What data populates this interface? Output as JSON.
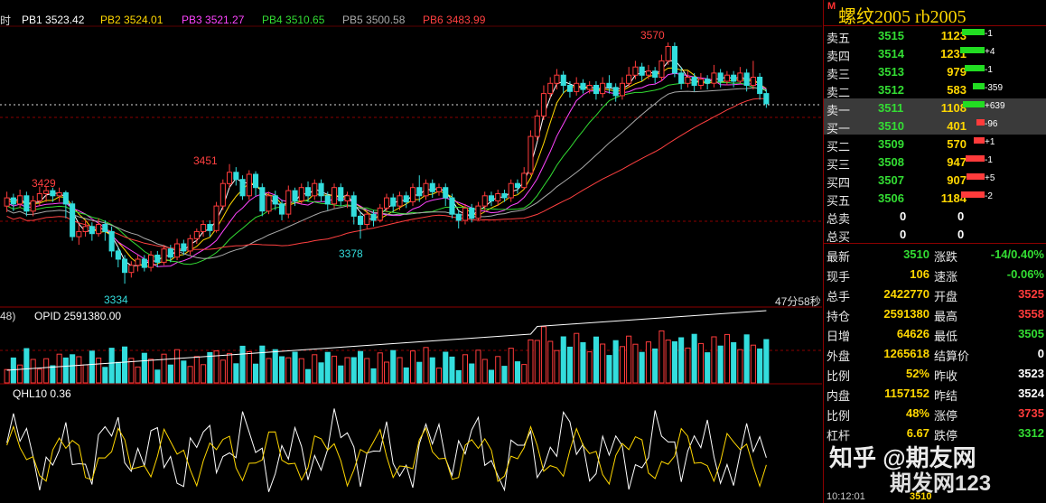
{
  "indicators": {
    "period_label": "时",
    "pb": [
      {
        "label": "PB1 3523.42",
        "color": "#ffffff"
      },
      {
        "label": "PB2 3524.01",
        "color": "#ffd700"
      },
      {
        "label": "PB3 3521.27",
        "color": "#ff44ff"
      },
      {
        "label": "PB4 3510.65",
        "color": "#33dd33"
      },
      {
        "label": "PB5 3500.58",
        "color": "#aaaaaa"
      },
      {
        "label": "PB6 3483.99",
        "color": "#ff4040"
      }
    ],
    "volume_label": "48)",
    "opid_label": "OPID 2591380.00",
    "qhl_label": "QHL10 0.36",
    "countdown": "47分58秒"
  },
  "price_annotations": {
    "high_3570": "3570",
    "high_3451": "3451",
    "high_3429": "3429",
    "low_3378": "3378",
    "low_3334": "3334"
  },
  "chart_data": {
    "type": "candlestick",
    "ylim": [
      3320,
      3585
    ],
    "current_price": 3511,
    "candles_open_close_high_low": [
      [
        3410,
        3418,
        3424,
        3404
      ],
      [
        3418,
        3412,
        3422,
        3405
      ],
      [
        3412,
        3420,
        3426,
        3408
      ],
      [
        3420,
        3405,
        3424,
        3400
      ],
      [
        3405,
        3415,
        3420,
        3400
      ],
      [
        3415,
        3422,
        3429,
        3410
      ],
      [
        3422,
        3425,
        3429,
        3414
      ],
      [
        3425,
        3420,
        3428,
        3414
      ],
      [
        3420,
        3423,
        3428,
        3414
      ],
      [
        3423,
        3412,
        3425,
        3398
      ],
      [
        3412,
        3380,
        3415,
        3376
      ],
      [
        3380,
        3385,
        3392,
        3372
      ],
      [
        3385,
        3390,
        3396,
        3380
      ],
      [
        3390,
        3383,
        3394,
        3376
      ],
      [
        3383,
        3392,
        3398,
        3380
      ],
      [
        3392,
        3385,
        3396,
        3376
      ],
      [
        3385,
        3366,
        3390,
        3360
      ],
      [
        3366,
        3358,
        3370,
        3350
      ],
      [
        3358,
        3345,
        3362,
        3334
      ],
      [
        3345,
        3352,
        3356,
        3340
      ],
      [
        3352,
        3358,
        3362,
        3346
      ],
      [
        3358,
        3350,
        3362,
        3346
      ],
      [
        3350,
        3362,
        3366,
        3346
      ],
      [
        3362,
        3355,
        3366,
        3350
      ],
      [
        3355,
        3368,
        3372,
        3352
      ],
      [
        3368,
        3360,
        3372,
        3355
      ],
      [
        3360,
        3373,
        3378,
        3357
      ],
      [
        3373,
        3366,
        3377,
        3362
      ],
      [
        3366,
        3378,
        3382,
        3362
      ],
      [
        3378,
        3385,
        3388,
        3373
      ],
      [
        3385,
        3392,
        3396,
        3380
      ],
      [
        3392,
        3386,
        3396,
        3380
      ],
      [
        3386,
        3410,
        3414,
        3384
      ],
      [
        3410,
        3432,
        3436,
        3406
      ],
      [
        3432,
        3443,
        3451,
        3428
      ],
      [
        3443,
        3436,
        3448,
        3430
      ],
      [
        3436,
        3420,
        3440,
        3416
      ],
      [
        3420,
        3441,
        3445,
        3416
      ],
      [
        3441,
        3428,
        3444,
        3420
      ],
      [
        3428,
        3405,
        3432,
        3400
      ],
      [
        3405,
        3420,
        3424,
        3402
      ],
      [
        3420,
        3412,
        3425,
        3406
      ],
      [
        3412,
        3402,
        3416,
        3396
      ],
      [
        3402,
        3425,
        3430,
        3398
      ],
      [
        3425,
        3415,
        3428,
        3410
      ],
      [
        3415,
        3428,
        3432,
        3412
      ],
      [
        3428,
        3420,
        3434,
        3414
      ],
      [
        3420,
        3432,
        3436,
        3416
      ],
      [
        3432,
        3420,
        3436,
        3414
      ],
      [
        3420,
        3412,
        3424,
        3406
      ],
      [
        3412,
        3428,
        3432,
        3408
      ],
      [
        3428,
        3415,
        3432,
        3410
      ],
      [
        3415,
        3420,
        3424,
        3408
      ],
      [
        3420,
        3400,
        3424,
        3392
      ],
      [
        3400,
        3392,
        3404,
        3378
      ],
      [
        3392,
        3402,
        3406,
        3388
      ],
      [
        3402,
        3396,
        3406,
        3390
      ],
      [
        3396,
        3408,
        3412,
        3394
      ],
      [
        3408,
        3418,
        3422,
        3404
      ],
      [
        3418,
        3410,
        3422,
        3404
      ],
      [
        3410,
        3420,
        3424,
        3406
      ],
      [
        3420,
        3414,
        3424,
        3408
      ],
      [
        3414,
        3428,
        3432,
        3410
      ],
      [
        3428,
        3420,
        3440,
        3414
      ],
      [
        3420,
        3432,
        3436,
        3416
      ],
      [
        3432,
        3424,
        3436,
        3418
      ],
      [
        3424,
        3428,
        3432,
        3420
      ],
      [
        3428,
        3418,
        3432,
        3410
      ],
      [
        3418,
        3402,
        3422,
        3398
      ],
      [
        3402,
        3396,
        3406,
        3388
      ],
      [
        3396,
        3408,
        3412,
        3392
      ],
      [
        3408,
        3398,
        3412,
        3394
      ],
      [
        3398,
        3410,
        3414,
        3396
      ],
      [
        3410,
        3420,
        3424,
        3406
      ],
      [
        3420,
        3415,
        3424,
        3410
      ],
      [
        3415,
        3422,
        3426,
        3410
      ],
      [
        3422,
        3418,
        3426,
        3414
      ],
      [
        3418,
        3432,
        3436,
        3414
      ],
      [
        3432,
        3428,
        3436,
        3422
      ],
      [
        3428,
        3442,
        3448,
        3426
      ],
      [
        3442,
        3478,
        3484,
        3440
      ],
      [
        3478,
        3498,
        3504,
        3474
      ],
      [
        3498,
        3520,
        3528,
        3494
      ],
      [
        3520,
        3530,
        3536,
        3516
      ],
      [
        3530,
        3538,
        3544,
        3524
      ],
      [
        3538,
        3528,
        3542,
        3520
      ],
      [
        3528,
        3522,
        3532,
        3516
      ],
      [
        3522,
        3530,
        3536,
        3518
      ],
      [
        3530,
        3524,
        3534,
        3520
      ],
      [
        3524,
        3528,
        3532,
        3520
      ],
      [
        3528,
        3520,
        3532,
        3514
      ],
      [
        3520,
        3530,
        3536,
        3516
      ],
      [
        3530,
        3526,
        3538,
        3520
      ],
      [
        3526,
        3518,
        3530,
        3512
      ],
      [
        3518,
        3530,
        3536,
        3514
      ],
      [
        3530,
        3538,
        3546,
        3526
      ],
      [
        3538,
        3546,
        3552,
        3534
      ],
      [
        3546,
        3538,
        3550,
        3532
      ],
      [
        3538,
        3542,
        3548,
        3534
      ],
      [
        3542,
        3536,
        3546,
        3530
      ],
      [
        3536,
        3552,
        3558,
        3532
      ],
      [
        3552,
        3566,
        3570,
        3548
      ],
      [
        3566,
        3540,
        3570,
        3536
      ],
      [
        3540,
        3530,
        3546,
        3524
      ],
      [
        3530,
        3536,
        3542,
        3526
      ],
      [
        3536,
        3528,
        3540,
        3522
      ],
      [
        3528,
        3534,
        3540,
        3524
      ],
      [
        3534,
        3530,
        3538,
        3524
      ],
      [
        3530,
        3540,
        3548,
        3526
      ],
      [
        3540,
        3532,
        3544,
        3526
      ],
      [
        3532,
        3538,
        3542,
        3528
      ],
      [
        3538,
        3532,
        3542,
        3526
      ],
      [
        3532,
        3540,
        3546,
        3530
      ],
      [
        3540,
        3528,
        3544,
        3522
      ],
      [
        3528,
        3536,
        3552,
        3524
      ],
      [
        3536,
        3520,
        3540,
        3514
      ],
      [
        3520,
        3510,
        3524,
        3506
      ]
    ],
    "ma_series_pb": [
      {
        "name": "PB1",
        "color": "#ffffff"
      },
      {
        "name": "PB2",
        "color": "#ffd700"
      },
      {
        "name": "PB3",
        "color": "#ff44ff"
      },
      {
        "name": "PB4",
        "color": "#33dd33"
      },
      {
        "name": "PB5",
        "color": "#aaaaaa"
      },
      {
        "name": "PB6",
        "color": "#ff4040"
      }
    ]
  },
  "panel": {
    "marker": "M",
    "title": "螺纹2005  rb2005",
    "asks": [
      {
        "label": "卖五",
        "price": "3515",
        "vol": "1123",
        "bar": 0.62,
        "chg": "-1",
        "bar_color": "#22dd22"
      },
      {
        "label": "卖四",
        "price": "3514",
        "vol": "1231",
        "bar": 0.68,
        "chg": "+4",
        "bar_color": "#22dd22"
      },
      {
        "label": "卖三",
        "price": "3513",
        "vol": "979",
        "bar": 0.54,
        "chg": "-1",
        "bar_color": "#22dd22"
      },
      {
        "label": "卖二",
        "price": "3512",
        "vol": "583",
        "bar": 0.32,
        "chg": "-359",
        "bar_color": "#22dd22"
      },
      {
        "label": "卖一",
        "price": "3511",
        "vol": "1108",
        "bar": 0.61,
        "chg": "+639",
        "bar_color": "#22dd22"
      }
    ],
    "bids": [
      {
        "label": "买一",
        "price": "3510",
        "vol": "401",
        "bar": 0.22,
        "chg": "-96",
        "bar_color": "#ff3b3b"
      },
      {
        "label": "买二",
        "price": "3509",
        "vol": "570",
        "bar": 0.31,
        "chg": "+1",
        "bar_color": "#ff3b3b"
      },
      {
        "label": "买三",
        "price": "3508",
        "vol": "947",
        "bar": 0.52,
        "chg": "-1",
        "bar_color": "#ff3b3b"
      },
      {
        "label": "买四",
        "price": "3507",
        "vol": "907",
        "bar": 0.5,
        "chg": "+5",
        "bar_color": "#ff3b3b"
      },
      {
        "label": "买五",
        "price": "3506",
        "vol": "1184",
        "bar": 0.65,
        "chg": "-2",
        "bar_color": "#ff3b3b"
      }
    ],
    "totals": [
      {
        "label": "总卖",
        "a": "0",
        "b": "0"
      },
      {
        "label": "总买",
        "a": "0",
        "b": "0"
      }
    ],
    "quotes": [
      {
        "l1": "最新",
        "v1": "3510",
        "c1": "grn",
        "l2": "涨跌",
        "v2": "-14/0.40%",
        "c2": "grn"
      },
      {
        "l1": "现手",
        "v1": "106",
        "c1": "yel",
        "l2": "速涨",
        "v2": "-0.06%",
        "c2": "grn"
      },
      {
        "l1": "总手",
        "v1": "2422770",
        "c1": "yel",
        "l2": "开盘",
        "v2": "3525",
        "c2": "red"
      },
      {
        "l1": "持仓",
        "v1": "2591380",
        "c1": "yel",
        "l2": "最高",
        "v2": "3558",
        "c2": "red"
      },
      {
        "l1": "日增",
        "v1": "64626",
        "c1": "yel",
        "l2": "最低",
        "v2": "3505",
        "c2": "grn"
      },
      {
        "l1": "外盘",
        "v1": "1265618",
        "c1": "yel",
        "l2": "结算价",
        "v2": "0",
        "c2": "wht"
      },
      {
        "l1": "比例",
        "v1": "52%",
        "c1": "yel",
        "l2": "昨收",
        "v2": "3523",
        "c2": "wht"
      },
      {
        "l1": "内盘",
        "v1": "1157152",
        "c1": "yel",
        "l2": "昨结",
        "v2": "3524",
        "c2": "wht"
      },
      {
        "l1": "比例",
        "v1": "48%",
        "c1": "yel",
        "l2": "涨停",
        "v2": "3735",
        "c2": "red"
      },
      {
        "l1": "杠杆",
        "v1": "6.67",
        "c1": "yel",
        "l2": "跌停",
        "v2": "3312",
        "c2": "grn"
      }
    ],
    "watermark_1": "知乎 @期友网",
    "watermark_2": "期发网123",
    "tick_time": "10:12:01",
    "tick_price": "3510"
  }
}
